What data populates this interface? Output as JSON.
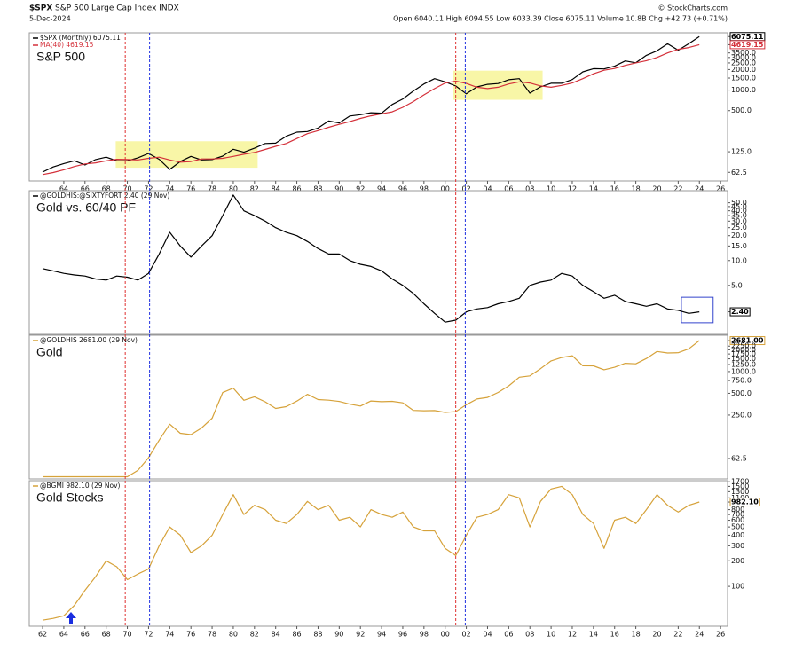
{
  "chart_data": [
    {
      "type": "line",
      "title": "$SPX",
      "subtitle": "S&P 500 Large Cap Index INDX",
      "date": "5-Dec-2024",
      "quote": "Open 6040.11 High 6094.55 Low 6033.39 Close 6075.11 Volume 10.8B Chg +42.73 (+0.71%)",
      "source": "© StockCharts.com",
      "panel_label": "S&P 500",
      "log_scale": true,
      "xlim": [
        1960.74,
        2026.66
      ],
      "ylim": [
        46.7,
        6900
      ],
      "x": [
        1962,
        1963,
        1964,
        1965,
        1966,
        1967,
        1968,
        1969,
        1970,
        1971,
        1972,
        1973,
        1974,
        1975,
        1976,
        1977,
        1978,
        1979,
        1980,
        1981,
        1982,
        1983,
        1984,
        1985,
        1986,
        1987,
        1988,
        1989,
        1990,
        1991,
        1992,
        1993,
        1994,
        1995,
        1996,
        1997,
        1998,
        1999,
        2000,
        2001,
        2002,
        2003,
        2004,
        2005,
        2006,
        2007,
        2008,
        2009,
        2010,
        2011,
        2012,
        2013,
        2014,
        2015,
        2016,
        2017,
        2018,
        2019,
        2020,
        2021,
        2022,
        2023,
        2024
      ],
      "series": [
        {
          "name": "$SPX (Monthly) 6075.11",
          "color": "#000000",
          "values": [
            63,
            75,
            84,
            92,
            80,
            96,
            104,
            92,
            92,
            102,
            118,
            97,
            69,
            90,
            107,
            95,
            96,
            108,
            136,
            123,
            141,
            165,
            167,
            211,
            242,
            247,
            278,
            353,
            330,
            417,
            436,
            466,
            459,
            616,
            741,
            970,
            1229,
            1469,
            1320,
            1148,
            880,
            1112,
            1212,
            1248,
            1418,
            1468,
            903,
            1115,
            1258,
            1258,
            1426,
            1848,
            2059,
            2044,
            2239,
            2674,
            2507,
            3231,
            3756,
            4766,
            3840,
            4770,
            6075.11
          ]
        },
        {
          "name": "MA(40) 4619.15",
          "color": "#d4303a",
          "values": [
            58,
            62,
            68,
            76,
            83,
            86,
            92,
            97,
            96,
            95,
            100,
            104,
            95,
            88,
            90,
            98,
            98,
            100,
            107,
            115,
            122,
            135,
            150,
            165,
            195,
            230,
            255,
            285,
            315,
            345,
            385,
            420,
            450,
            480,
            560,
            680,
            850,
            1050,
            1270,
            1350,
            1250,
            1100,
            1050,
            1100,
            1230,
            1320,
            1270,
            1150,
            1100,
            1170,
            1270,
            1470,
            1730,
            1950,
            2070,
            2300,
            2500,
            2700,
            3000,
            3500,
            3950,
            4200,
            4619.15
          ]
        }
      ],
      "yticks": [
        {
          "value": 6075.11,
          "label": "6075.11",
          "boxed": "#000000"
        },
        {
          "value": 4619.15,
          "label": "4619.15",
          "boxed": "#d4303a"
        },
        {
          "value": 3500,
          "label": "3500.0"
        },
        {
          "value": 3000,
          "label": "3000.0"
        },
        {
          "value": 2500,
          "label": "2500.0"
        },
        {
          "value": 2000,
          "label": "2000.0"
        },
        {
          "value": 1500,
          "label": "1500.0"
        },
        {
          "value": 1000,
          "label": "1000.0"
        },
        {
          "value": 500,
          "label": "500.0"
        },
        {
          "value": 125,
          "label": "125.0"
        },
        62.5
      ],
      "xticks": [
        {
          "value": 1964,
          "label": "64"
        },
        {
          "value": 1966,
          "label": "66"
        },
        {
          "value": 1968,
          "label": "68"
        },
        {
          "value": 1970,
          "label": "70"
        },
        {
          "value": 1972,
          "label": "72"
        },
        {
          "value": 1974,
          "label": "74"
        },
        {
          "value": 1976,
          "label": "76"
        },
        {
          "value": 1978,
          "label": "78"
        },
        {
          "value": 1980,
          "label": "80"
        },
        {
          "value": 1982,
          "label": "82"
        },
        {
          "value": 1984,
          "label": "84"
        },
        {
          "value": 1986,
          "label": "86"
        },
        {
          "value": 1988,
          "label": "88"
        },
        {
          "value": 1990,
          "label": "90"
        },
        {
          "value": 1992,
          "label": "92"
        },
        {
          "value": 1994,
          "label": "94"
        },
        {
          "value": 1996,
          "label": "96"
        },
        {
          "value": 1998,
          "label": "98"
        },
        {
          "value": 2000,
          "label": "00"
        },
        {
          "value": 2002,
          "label": "02"
        },
        {
          "value": 2004,
          "label": "04"
        },
        {
          "value": 2006,
          "label": "06"
        },
        {
          "value": 2008,
          "label": "08"
        },
        {
          "value": 2010,
          "label": "10"
        },
        {
          "value": 2012,
          "label": "12"
        },
        {
          "value": 2014,
          "label": "14"
        },
        {
          "value": 2016,
          "label": "16"
        },
        {
          "value": 2018,
          "label": "18"
        },
        {
          "value": 2020,
          "label": "20"
        },
        {
          "value": 2022,
          "label": "22"
        },
        {
          "value": 2024,
          "label": "24"
        },
        {
          "value": 2026,
          "label": "26"
        }
      ],
      "highlights": [
        {
          "x": [
            1968.9,
            1982.3
          ],
          "y": [
            73,
            178
          ],
          "fill": "#f5f38a"
        },
        {
          "x": [
            2000.7,
            2009.2
          ],
          "y": [
            720,
            1925
          ],
          "fill": "#f5f38a"
        }
      ]
    },
    {
      "type": "line",
      "panel_label": "Gold vs. 60/40 PF",
      "log_scale": true,
      "xlim": [
        1960.74,
        2026.66
      ],
      "ylim": [
        1.28,
        70
      ],
      "x": [
        1962,
        1963,
        1964,
        1965,
        1966,
        1967,
        1968,
        1969,
        1970,
        1971,
        1972,
        1973,
        1974,
        1975,
        1976,
        1977,
        1978,
        1979,
        1980,
        1981,
        1982,
        1983,
        1984,
        1985,
        1986,
        1987,
        1988,
        1989,
        1990,
        1991,
        1992,
        1993,
        1994,
        1995,
        1996,
        1997,
        1998,
        1999,
        2000,
        2001,
        2002,
        2003,
        2004,
        2005,
        2006,
        2007,
        2008,
        2009,
        2010,
        2011,
        2012,
        2013,
        2014,
        2015,
        2016,
        2017,
        2018,
        2019,
        2020,
        2021,
        2022,
        2023,
        2024
      ],
      "series": [
        {
          "name": "@GOLDHIS:@SIXTYFORT 2.40 (29 Nov)",
          "color": "#000000",
          "values": [
            8,
            7.5,
            7,
            6.7,
            6.5,
            6,
            5.8,
            6.5,
            6.3,
            5.8,
            7,
            12,
            22,
            15,
            11,
            15,
            20,
            35,
            62,
            40,
            35,
            30,
            25,
            22,
            20,
            17,
            14,
            12,
            12,
            10,
            9,
            8.5,
            7.5,
            6,
            5,
            4,
            3,
            2.3,
            1.8,
            1.9,
            2.4,
            2.6,
            2.7,
            3,
            3.2,
            3.5,
            5,
            5.5,
            5.8,
            7,
            6.5,
            5,
            4.2,
            3.5,
            3.8,
            3.2,
            3,
            2.8,
            3,
            2.6,
            2.5,
            2.3,
            2.4
          ]
        }
      ],
      "yticks": [
        {
          "value": 50,
          "label": "50.0"
        },
        {
          "value": 45,
          "label": "45.0"
        },
        {
          "value": 40,
          "label": "40.0"
        },
        {
          "value": 35,
          "label": "35.0"
        },
        {
          "value": 30,
          "label": "30.0"
        },
        {
          "value": 25,
          "label": "25.0"
        },
        {
          "value": 20,
          "label": "20.0"
        },
        {
          "value": 15,
          "label": "15.0"
        },
        {
          "value": 10,
          "label": "10.0"
        },
        {
          "value": 5,
          "label": "5.0"
        },
        {
          "value": 2.4,
          "label": "2.40",
          "boxed": "#000000"
        }
      ],
      "highlights": [
        {
          "x": [
            2022.3,
            2025.3
          ],
          "y": [
            1.77,
            3.6
          ],
          "stroke": "#3344cc"
        }
      ]
    },
    {
      "type": "line",
      "panel_label": "Gold",
      "log_scale": true,
      "xlim": [
        1960.74,
        2026.66
      ],
      "ylim": [
        32.6,
        3180
      ],
      "x": [
        1962,
        1963,
        1964,
        1965,
        1966,
        1967,
        1968,
        1969,
        1970,
        1971,
        1972,
        1973,
        1974,
        1975,
        1976,
        1977,
        1978,
        1979,
        1980,
        1981,
        1982,
        1983,
        1984,
        1985,
        1986,
        1987,
        1988,
        1989,
        1990,
        1991,
        1992,
        1993,
        1994,
        1995,
        1996,
        1997,
        1998,
        1999,
        2000,
        2001,
        2002,
        2003,
        2004,
        2005,
        2006,
        2007,
        2008,
        2009,
        2010,
        2011,
        2012,
        2013,
        2014,
        2015,
        2016,
        2017,
        2018,
        2019,
        2020,
        2021,
        2022,
        2023,
        2024
      ],
      "series": [
        {
          "name": "@GOLDHIS 2681.00 (29 Nov)",
          "color": "#d6a23a",
          "values": [
            35,
            35,
            35,
            35,
            35,
            35,
            35,
            35,
            35,
            43,
            64,
            112,
            187,
            140,
            134,
            165,
            226,
            512,
            590,
            400,
            447,
            381,
            309,
            327,
            390,
            484,
            410,
            401,
            386,
            353,
            333,
            391,
            383,
            387,
            369,
            290,
            287,
            288,
            272,
            279,
            348,
            416,
            438,
            513,
            632,
            834,
            870,
            1096,
            1405,
            1565,
            1657,
            1202,
            1199,
            1060,
            1146,
            1303,
            1279,
            1515,
            1895,
            1806,
            1824,
            2063,
            2681
          ]
        }
      ],
      "yticks": [
        {
          "value": 2681,
          "label": "2681.00",
          "boxed": "#d6a23a"
        },
        {
          "value": 2250,
          "label": "2250.0"
        },
        {
          "value": 2000,
          "label": "2000.0"
        },
        {
          "value": 1750,
          "label": "1750.0"
        },
        {
          "value": 1500,
          "label": "1500.0"
        },
        {
          "value": 1250,
          "label": "1250.0"
        },
        {
          "value": 1000,
          "label": "1000.0"
        },
        {
          "value": 750,
          "label": "750.0"
        },
        {
          "value": 500,
          "label": "500.0"
        },
        {
          "value": 250,
          "label": "250.0"
        },
        62.5
      ]
    },
    {
      "type": "line",
      "panel_label": "Gold Stocks",
      "log_scale": true,
      "xlim": [
        1960.74,
        2026.66
      ],
      "ylim": [
        34,
        1750
      ],
      "x": [
        1962,
        1963,
        1964,
        1965,
        1966,
        1967,
        1968,
        1969,
        1970,
        1971,
        1972,
        1973,
        1974,
        1975,
        1976,
        1977,
        1978,
        1979,
        1980,
        1981,
        1982,
        1983,
        1984,
        1985,
        1986,
        1987,
        1988,
        1989,
        1990,
        1991,
        1992,
        1993,
        1994,
        1995,
        1996,
        1997,
        1998,
        1999,
        2000,
        2001,
        2002,
        2003,
        2004,
        2005,
        2006,
        2007,
        2008,
        2009,
        2010,
        2011,
        2012,
        2013,
        2014,
        2015,
        2016,
        2017,
        2018,
        2019,
        2020,
        2021,
        2022,
        2023,
        2024
      ],
      "series": [
        {
          "name": "@BGMI 982.10 (29 Nov)",
          "color": "#d6a23a",
          "values": [
            40,
            42,
            45,
            60,
            90,
            130,
            200,
            170,
            120,
            140,
            160,
            300,
            500,
            400,
            250,
            300,
            400,
            700,
            1200,
            700,
            900,
            800,
            600,
            550,
            700,
            1000,
            800,
            900,
            600,
            650,
            500,
            800,
            700,
            650,
            750,
            500,
            450,
            450,
            280,
            230,
            400,
            650,
            700,
            800,
            1200,
            1100,
            500,
            1000,
            1400,
            1500,
            1200,
            700,
            550,
            280,
            600,
            650,
            550,
            800,
            1200,
            900,
            750,
            900,
            982.1
          ]
        }
      ],
      "yticks": [
        1700,
        1500,
        1300,
        1100,
        {
          "value": 982.1,
          "label": "982.10",
          "boxed": "#d6a23a"
        },
        800,
        700,
        600,
        500,
        400,
        300,
        200,
        100
      ],
      "xticks": [
        {
          "value": 1962,
          "label": "62"
        },
        {
          "value": 1964,
          "label": "64"
        },
        {
          "value": 1966,
          "label": "66"
        },
        {
          "value": 1968,
          "label": "68"
        },
        {
          "value": 1970,
          "label": "70"
        },
        {
          "value": 1972,
          "label": "72"
        },
        {
          "value": 1974,
          "label": "74"
        },
        {
          "value": 1976,
          "label": "76"
        },
        {
          "value": 1978,
          "label": "78"
        },
        {
          "value": 1980,
          "label": "80"
        },
        {
          "value": 1982,
          "label": "82"
        },
        {
          "value": 1984,
          "label": "84"
        },
        {
          "value": 1986,
          "label": "86"
        },
        {
          "value": 1988,
          "label": "88"
        },
        {
          "value": 1990,
          "label": "90"
        },
        {
          "value": 1992,
          "label": "92"
        },
        {
          "value": 1994,
          "label": "94"
        },
        {
          "value": 1996,
          "label": "96"
        },
        {
          "value": 1998,
          "label": "98"
        },
        {
          "value": 2000,
          "label": "00"
        },
        {
          "value": 2002,
          "label": "02"
        },
        {
          "value": 2004,
          "label": "04"
        },
        {
          "value": 2006,
          "label": "06"
        },
        {
          "value": 2008,
          "label": "08"
        },
        {
          "value": 2010,
          "label": "10"
        },
        {
          "value": 2012,
          "label": "12"
        },
        {
          "value": 2014,
          "label": "14"
        },
        {
          "value": 2016,
          "label": "16"
        },
        {
          "value": 2018,
          "label": "18"
        },
        {
          "value": 2020,
          "label": "20"
        },
        {
          "value": 2022,
          "label": "22"
        },
        {
          "value": 2024,
          "label": "24"
        },
        {
          "value": 2026,
          "label": "26"
        }
      ]
    }
  ],
  "vlines": [
    {
      "x": 1969.8,
      "color": "#e03030"
    },
    {
      "x": 1972.1,
      "color": "#2030e0"
    },
    {
      "x": 2001.0,
      "color": "#e03030"
    },
    {
      "x": 2001.9,
      "color": "#2030e0"
    }
  ]
}
